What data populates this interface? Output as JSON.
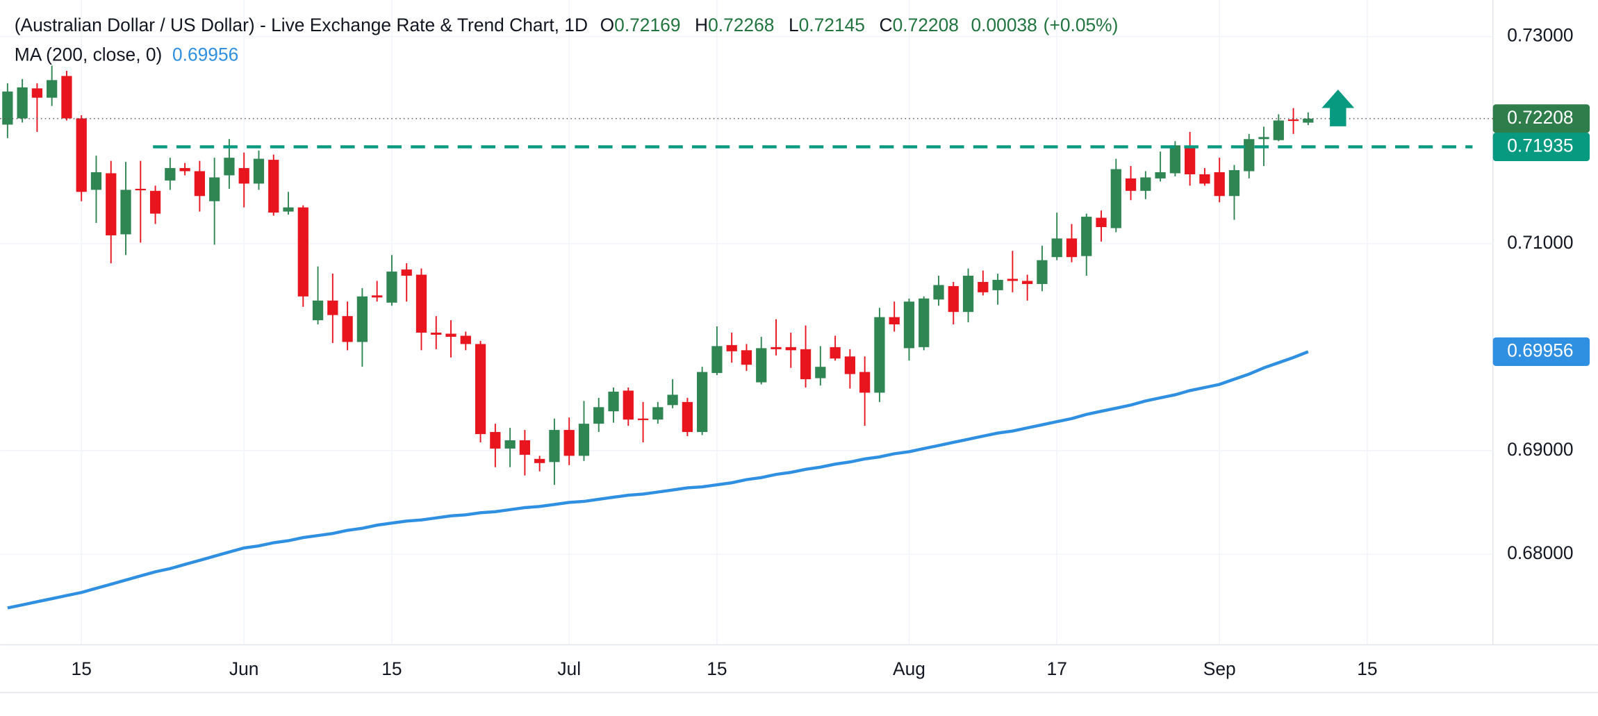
{
  "chart_data": {
    "type": "candlestick",
    "title": "(Australian Dollar / US Dollar) - Live Exchange Rate & Trend Chart, 1D",
    "ohlc_labels": [
      "O",
      "H",
      "L",
      "C"
    ],
    "change": 0.00038,
    "change_percent": {
      "value": 0.05,
      "label": "(+0.05%)"
    },
    "up_color": "#2f8653",
    "down_color": "#e8141e",
    "open": [
      0.7215,
      0.7221,
      0.725,
      0.7241,
      0.7262,
      0.7221,
      0.7152,
      0.7168,
      0.7109,
      0.7153,
      0.7151,
      0.7161,
      0.7173,
      0.717,
      0.7141,
      0.7166,
      0.7173,
      0.7158,
      0.7181,
      0.7131,
      0.7135,
      0.7026,
      0.7045,
      0.703,
      0.7005,
      0.705,
      0.7043,
      0.7075,
      0.707,
      0.7014,
      0.7013,
      0.7011,
      0.7003,
      0.6918,
      0.6902,
      0.691,
      0.6892,
      0.6889,
      0.692,
      0.6895,
      0.6926,
      0.6938,
      0.6958,
      0.6931,
      0.693,
      0.6944,
      0.6947,
      0.6918,
      0.6975,
      0.7002,
      0.6997,
      0.6966,
      0.7,
      0.7,
      0.6998,
      0.697,
      0.7,
      0.6991,
      0.6976,
      0.6956,
      0.7029,
      0.6999,
      0.7,
      0.7046,
      0.7059,
      0.7034,
      0.7063,
      0.7055,
      0.7066,
      0.7064,
      0.7061,
      0.7087,
      0.7105,
      0.7088,
      0.7125,
      0.7115,
      0.7163,
      0.7151,
      0.7163,
      0.7168,
      0.7194,
      0.7167,
      0.7169,
      0.7146,
      0.717,
      0.7201,
      0.72,
      0.722,
      0.72169
    ],
    "high": [
      0.7255,
      0.7259,
      0.7255,
      0.7272,
      0.7267,
      0.7224,
      0.7185,
      0.718,
      0.7179,
      0.718,
      0.7156,
      0.7183,
      0.7178,
      0.718,
      0.7183,
      0.7201,
      0.7188,
      0.719,
      0.7186,
      0.715,
      0.7137,
      0.7078,
      0.7071,
      0.7044,
      0.7057,
      0.7064,
      0.7089,
      0.7081,
      0.7076,
      0.703,
      0.7026,
      0.7015,
      0.7006,
      0.6926,
      0.6922,
      0.692,
      0.6895,
      0.6931,
      0.6932,
      0.6948,
      0.6951,
      0.6961,
      0.6961,
      0.6947,
      0.6947,
      0.6969,
      0.6951,
      0.6981,
      0.702,
      0.7014,
      0.7003,
      0.701,
      0.7027,
      0.7014,
      0.7021,
      0.7001,
      0.7011,
      0.6998,
      0.6991,
      0.7038,
      0.7044,
      0.7047,
      0.7049,
      0.7069,
      0.7063,
      0.7076,
      0.7074,
      0.7071,
      0.7093,
      0.707,
      0.7098,
      0.713,
      0.7119,
      0.7129,
      0.7132,
      0.7182,
      0.7175,
      0.717,
      0.7189,
      0.7199,
      0.7208,
      0.7173,
      0.7183,
      0.7176,
      0.7206,
      0.7213,
      0.7225,
      0.7231,
      0.72268
    ],
    "low": [
      0.7202,
      0.7217,
      0.7208,
      0.7233,
      0.7219,
      0.7141,
      0.712,
      0.7081,
      0.7089,
      0.7101,
      0.7119,
      0.7152,
      0.7166,
      0.7131,
      0.7099,
      0.7153,
      0.7135,
      0.7152,
      0.7127,
      0.7128,
      0.7039,
      0.7022,
      0.7004,
      0.6997,
      0.6981,
      0.7044,
      0.704,
      0.7044,
      0.6997,
      0.6998,
      0.699,
      0.6997,
      0.6908,
      0.6884,
      0.6884,
      0.6876,
      0.688,
      0.6867,
      0.6886,
      0.689,
      0.6918,
      0.6927,
      0.6924,
      0.6908,
      0.6926,
      0.6941,
      0.6914,
      0.6915,
      0.6973,
      0.6985,
      0.6977,
      0.6964,
      0.6992,
      0.698,
      0.6961,
      0.6963,
      0.6987,
      0.696,
      0.6924,
      0.6947,
      0.7015,
      0.6987,
      0.6997,
      0.704,
      0.7022,
      0.7024,
      0.705,
      0.7041,
      0.7053,
      0.7045,
      0.7054,
      0.7084,
      0.7082,
      0.7069,
      0.7102,
      0.7111,
      0.7142,
      0.7143,
      0.716,
      0.7165,
      0.7156,
      0.7156,
      0.714,
      0.7123,
      0.7163,
      0.7175,
      0.7199,
      0.7206,
      0.72145
    ],
    "close": [
      0.7247,
      0.7251,
      0.7241,
      0.7258,
      0.7221,
      0.715,
      0.7169,
      0.7108,
      0.7152,
      0.7152,
      0.7129,
      0.7173,
      0.717,
      0.7146,
      0.7164,
      0.7183,
      0.7158,
      0.7182,
      0.713,
      0.7135,
      0.7049,
      0.7045,
      0.7031,
      0.7005,
      0.7049,
      0.7048,
      0.7073,
      0.7069,
      0.7014,
      0.7012,
      0.701,
      0.7003,
      0.6916,
      0.6902,
      0.691,
      0.6896,
      0.6888,
      0.692,
      0.6895,
      0.6926,
      0.6942,
      0.6957,
      0.693,
      0.693,
      0.6942,
      0.6954,
      0.6918,
      0.6976,
      0.7001,
      0.6996,
      0.6983,
      0.6999,
      0.6998,
      0.6997,
      0.6969,
      0.6981,
      0.6989,
      0.6974,
      0.6956,
      0.7029,
      0.7022,
      0.7044,
      0.7047,
      0.706,
      0.7034,
      0.7069,
      0.7053,
      0.7065,
      0.7064,
      0.7061,
      0.7084,
      0.7105,
      0.7087,
      0.7126,
      0.7116,
      0.7172,
      0.7151,
      0.7164,
      0.7169,
      0.7195,
      0.7167,
      0.7158,
      0.7146,
      0.7171,
      0.7201,
      0.7203,
      0.7219,
      0.7219,
      0.72208
    ],
    "indicator": {
      "name": "MA (200, close, 0)",
      "color": "#2f8fe0",
      "values": [
        0.6748,
        0.6751,
        0.6754,
        0.6757,
        0.676,
        0.6763,
        0.6767,
        0.6771,
        0.6775,
        0.6779,
        0.6783,
        0.6786,
        0.679,
        0.6794,
        0.6798,
        0.6802,
        0.6806,
        0.6808,
        0.6811,
        0.6813,
        0.6816,
        0.6818,
        0.682,
        0.6823,
        0.6825,
        0.6828,
        0.683,
        0.6832,
        0.6833,
        0.6835,
        0.6837,
        0.6838,
        0.684,
        0.6841,
        0.6843,
        0.6845,
        0.6846,
        0.6848,
        0.685,
        0.6851,
        0.6853,
        0.6855,
        0.6857,
        0.6858,
        0.686,
        0.6862,
        0.6864,
        0.6865,
        0.6867,
        0.6869,
        0.6872,
        0.6874,
        0.6877,
        0.6879,
        0.6882,
        0.6884,
        0.6887,
        0.6889,
        0.6892,
        0.6894,
        0.6897,
        0.6899,
        0.6902,
        0.6905,
        0.6908,
        0.6911,
        0.6914,
        0.6917,
        0.6919,
        0.6922,
        0.6925,
        0.6928,
        0.6931,
        0.6935,
        0.6938,
        0.6941,
        0.6944,
        0.6948,
        0.6951,
        0.6954,
        0.6958,
        0.6961,
        0.6964,
        0.6969,
        0.6974,
        0.698,
        0.6985,
        0.699,
        0.69956
      ]
    },
    "levels": [
      {
        "value": 0.71935,
        "color": "#089981"
      }
    ],
    "last_price_color": "#2f7d4b",
    "xlim": [
      -0.5,
      100.5
    ],
    "xticks": [
      {
        "value": 5,
        "label": "15"
      },
      {
        "value": 16,
        "label": "Jun"
      },
      {
        "value": 26,
        "label": "15"
      },
      {
        "value": 38,
        "label": "Jul"
      },
      {
        "value": 48,
        "label": "15"
      },
      {
        "value": 61,
        "label": "Aug"
      },
      {
        "value": 71,
        "label": "17"
      },
      {
        "value": 82,
        "label": "Sep"
      },
      {
        "value": 92,
        "label": "15"
      }
    ],
    "ylim": [
      0.67125,
      0.73354
    ],
    "yticks": [
      {
        "value": 0.73,
        "label": "0.73000"
      },
      {
        "value": 0.71,
        "label": "0.71000"
      },
      {
        "value": 0.69,
        "label": "0.69000"
      },
      {
        "value": 0.68,
        "label": "0.68000"
      }
    ],
    "grid": true
  }
}
